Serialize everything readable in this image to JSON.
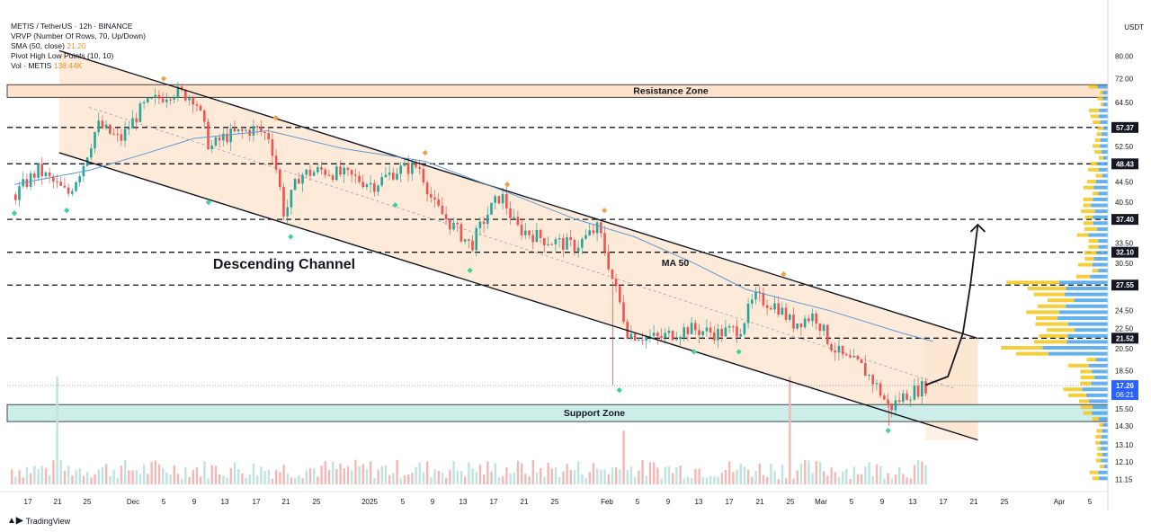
{
  "legend": {
    "symbol": "METIS / TetherUS · 12h · BINANCE",
    "vrvp": "VRVP (Number Of Rows, 70, Up/Down)",
    "sma_label": "SMA (50, close)",
    "sma_value": "21.20",
    "pivot": "Pivot High Low Points (10, 10)",
    "vol_label": "Vol · METIS",
    "vol_value": "138.44K"
  },
  "axis_unit": "USDT",
  "brand": "TradingView",
  "colors": {
    "candle_up": "#26a69a",
    "candle_down": "#ef5350",
    "channel_fill": "#fde3cc",
    "resistance_fill": "#fde3cc",
    "support_fill": "#cdeee8",
    "sma": "#5b9bd5",
    "pivot_high": "#f0a040",
    "pivot_low": "#3ecfa0",
    "volume_profile_up": "#4aa3e8",
    "volume_profile_down": "#f5c518"
  },
  "chart_data": {
    "type": "candlestick",
    "annotations": {
      "resistance_label": "Resistance Zone",
      "support_label": "Support Zone",
      "channel_label": "Descending Channel",
      "ma_label": "MA 50"
    },
    "resistance_zone": [
      66.0,
      70.0
    ],
    "support_zone": [
      14.6,
      15.8
    ],
    "horizontal_levels": [
      57.37,
      48.43,
      37.4,
      32.1,
      27.55,
      21.52
    ],
    "level_labels": [
      "57.37",
      "48.43",
      "37.40",
      "32.10",
      "27.55",
      "21.52"
    ],
    "current_price": "17.26",
    "countdown": "06:21",
    "y_ticks": [
      "80.00",
      "72.00",
      "64.50",
      "57.50",
      "52.50",
      "48.50",
      "44.50",
      "40.50",
      "37.00",
      "33.50",
      "30.50",
      "27.50",
      "24.50",
      "22.50",
      "20.50",
      "18.50",
      "17.00",
      "15.50",
      "14.30",
      "13.10",
      "12.10",
      "11.15"
    ],
    "y_scale": "log",
    "ylim": [
      10.9,
      86
    ],
    "x_ticks": [
      "17",
      "21",
      "25",
      "Dec",
      "5",
      "9",
      "13",
      "17",
      "21",
      "25",
      "2025",
      "5",
      "9",
      "13",
      "17",
      "21",
      "25",
      "Feb",
      "5",
      "9",
      "13",
      "17",
      "21",
      "25",
      "Mar",
      "5",
      "9",
      "13",
      "17",
      "21",
      "25",
      "Apr",
      "5"
    ],
    "channel": {
      "upper": [
        [
          "2024-11-20",
          82.0
        ],
        [
          "2025-03-23",
          21.5
        ]
      ],
      "lower": [
        [
          "2024-11-20",
          51.0
        ],
        [
          "2025-03-23",
          13.4
        ]
      ],
      "mid": [
        [
          "2024-11-24",
          63.0
        ],
        [
          "2025-03-20",
          17.0
        ]
      ]
    },
    "projection": [
      [
        "2025-03-16",
        17.3
      ],
      [
        "2025-03-19",
        18.0
      ],
      [
        "2025-03-21",
        22.0
      ],
      [
        "2025-03-22",
        27.5
      ],
      [
        "2025-03-23",
        36.5
      ]
    ],
    "sma_path": [
      [
        "2024-11-14",
        44.0
      ],
      [
        "2024-11-24",
        47.0
      ],
      [
        "2024-12-01",
        50.5
      ],
      [
        "2024-12-08",
        54.5
      ],
      [
        "2024-12-18",
        56.5
      ],
      [
        "2024-12-28",
        52.0
      ],
      [
        "2025-01-08",
        49.0
      ],
      [
        "2025-01-18",
        43.0
      ],
      [
        "2025-01-28",
        37.5
      ],
      [
        "2025-02-05",
        34.5
      ],
      [
        "2025-02-13",
        30.5
      ],
      [
        "2025-02-20",
        27.0
      ],
      [
        "2025-03-03",
        24.5
      ],
      [
        "2025-03-13",
        22.0
      ],
      [
        "2025-03-17",
        21.2
      ]
    ],
    "price_path": [
      [
        "2024-11-14",
        42
      ],
      [
        "2024-11-17",
        47
      ],
      [
        "2024-11-21",
        42
      ],
      [
        "2024-11-23",
        48
      ],
      [
        "2024-11-25",
        58
      ],
      [
        "2024-11-28",
        54
      ],
      [
        "2024-12-01",
        63
      ],
      [
        "2024-12-05",
        68
      ],
      [
        "2024-12-08",
        66
      ],
      [
        "2024-12-10",
        52
      ],
      [
        "2024-12-12",
        55
      ],
      [
        "2024-12-16",
        57
      ],
      [
        "2024-12-18",
        55
      ],
      [
        "2024-12-20",
        38
      ],
      [
        "2024-12-22",
        46
      ],
      [
        "2024-12-25",
        47
      ],
      [
        "2024-12-28",
        46
      ],
      [
        "2025-01-01",
        44
      ],
      [
        "2025-01-04",
        47
      ],
      [
        "2025-01-07",
        48
      ],
      [
        "2025-01-09",
        40
      ],
      [
        "2025-01-11",
        37
      ],
      [
        "2025-01-14",
        33
      ],
      [
        "2025-01-16",
        38
      ],
      [
        "2025-01-18",
        42
      ],
      [
        "2025-01-20",
        36
      ],
      [
        "2025-01-24",
        34
      ],
      [
        "2025-01-28",
        33
      ],
      [
        "2025-01-31",
        36
      ],
      [
        "2025-02-02",
        28
      ],
      [
        "2025-02-04",
        22
      ],
      [
        "2025-02-08",
        21.5
      ],
      [
        "2025-02-12",
        22.5
      ],
      [
        "2025-02-16",
        22
      ],
      [
        "2025-02-19",
        22.5
      ],
      [
        "2025-02-21",
        26
      ],
      [
        "2025-02-24",
        25
      ],
      [
        "2025-02-26",
        23
      ],
      [
        "2025-03-01",
        24
      ],
      [
        "2025-03-03",
        21
      ],
      [
        "2025-03-05",
        19.5
      ],
      [
        "2025-03-07",
        19
      ],
      [
        "2025-03-09",
        17.5
      ],
      [
        "2025-03-11",
        15.5
      ],
      [
        "2025-03-13",
        16.5
      ],
      [
        "2025-03-16",
        17.26
      ]
    ],
    "pivot_highs": [
      [
        "2024-12-04",
        72.0
      ],
      [
        "2024-12-19",
        60.0
      ],
      [
        "2025-01-08",
        51.0
      ],
      [
        "2025-01-19",
        44.0
      ],
      [
        "2025-02-01",
        39.0
      ],
      [
        "2025-02-25",
        29.0
      ]
    ],
    "pivot_lows": [
      [
        "2024-11-14",
        38.5
      ],
      [
        "2024-11-21",
        39.0
      ],
      [
        "2024-12-10",
        40.5
      ],
      [
        "2024-12-21",
        34.5
      ],
      [
        "2025-01-04",
        40.0
      ],
      [
        "2025-01-14",
        29.5
      ],
      [
        "2025-02-03",
        16.9
      ],
      [
        "2025-02-13",
        20.2
      ],
      [
        "2025-02-19",
        20.2
      ],
      [
        "2025-03-11",
        14.0
      ]
    ]
  }
}
